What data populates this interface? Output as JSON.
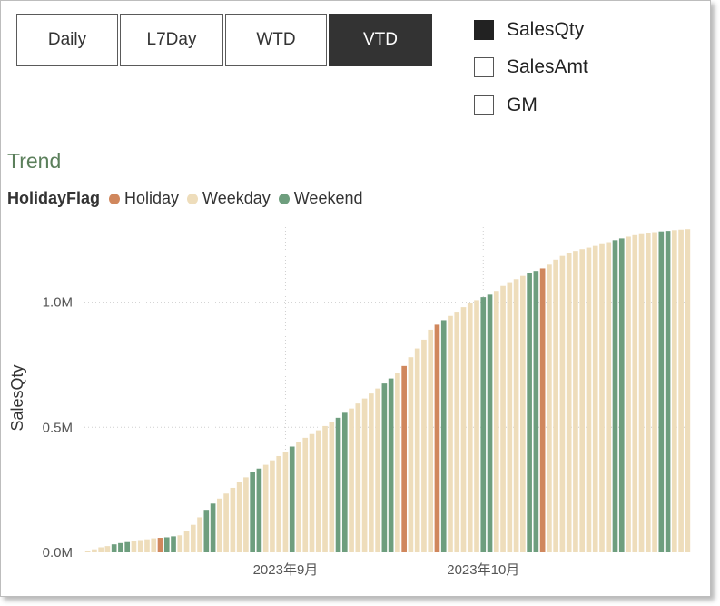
{
  "buttons": [
    {
      "label": "Daily",
      "active": false
    },
    {
      "label": "L7Day",
      "active": false
    },
    {
      "label": "WTD",
      "active": false
    },
    {
      "label": "VTD",
      "active": true
    }
  ],
  "measures": [
    {
      "label": "SalesQty",
      "checked": true
    },
    {
      "label": "SalesAmt",
      "checked": false
    },
    {
      "label": "GM",
      "checked": false
    }
  ],
  "visual_title": "Trend",
  "legend": {
    "title": "HolidayFlag",
    "items": [
      {
        "label": "Holiday",
        "color": "#D0875D"
      },
      {
        "label": "Weekday",
        "color": "#EEDDBB"
      },
      {
        "label": "Weekend",
        "color": "#6E9E7E"
      }
    ]
  },
  "colors": {
    "Holiday": "#D0875D",
    "Weekday": "#EEDDBB",
    "Weekend": "#6E9E7E"
  },
  "chart_data": {
    "type": "bar",
    "ylabel": "SalesQty",
    "xlabel": "",
    "ylim": [
      0,
      1300000
    ],
    "yticks": [
      {
        "value": 0,
        "label": "0.0M"
      },
      {
        "value": 500000,
        "label": "0.5M"
      },
      {
        "value": 1000000,
        "label": "1.0M"
      }
    ],
    "xticks": [
      {
        "index": 31,
        "label": "2023年9月"
      },
      {
        "index": 61,
        "label": "2023年10月"
      }
    ],
    "grid": "dotted",
    "categories_start": "2023-08-01",
    "categories_end": "2023-10-31",
    "flags": [
      "Weekday",
      "Weekday",
      "Weekday",
      "Weekday",
      "Weekend",
      "Weekend",
      "Weekend",
      "Weekday",
      "Weekday",
      "Weekday",
      "Weekday",
      "Holiday",
      "Weekend",
      "Weekend",
      "Weekday",
      "Weekday",
      "Weekday",
      "Weekday",
      "Weekend",
      "Weekend",
      "Weekday",
      "Weekday",
      "Weekday",
      "Weekday",
      "Weekday",
      "Weekend",
      "Weekend",
      "Weekday",
      "Weekday",
      "Weekday",
      "Weekday",
      "Weekend",
      "Weekday",
      "Weekday",
      "Weekday",
      "Weekday",
      "Weekday",
      "Weekday",
      "Weekend",
      "Weekend",
      "Weekday",
      "Weekday",
      "Weekday",
      "Weekday",
      "Weekday",
      "Weekend",
      "Weekend",
      "Weekday",
      "Holiday",
      "Weekday",
      "Weekday",
      "Weekday",
      "Weekday",
      "Holiday",
      "Weekend",
      "Weekday",
      "Weekday",
      "Weekday",
      "Weekday",
      "Weekday",
      "Weekend",
      "Weekend",
      "Weekday",
      "Weekday",
      "Weekday",
      "Weekday",
      "Weekday",
      "Weekend",
      "Weekend",
      "Holiday",
      "Weekday",
      "Weekday",
      "Weekday",
      "Weekday",
      "Weekday",
      "Weekday",
      "Weekday",
      "Weekday",
      "Weekday",
      "Weekday",
      "Weekend",
      "Weekend",
      "Weekday",
      "Weekday",
      "Weekday",
      "Weekday",
      "Weekday",
      "Weekend",
      "Weekend",
      "Weekday",
      "Weekday",
      "Weekday"
    ],
    "values": [
      5000,
      12000,
      20000,
      25000,
      32000,
      37000,
      41000,
      45000,
      49000,
      52000,
      56000,
      58000,
      60000,
      64000,
      68000,
      85000,
      110000,
      140000,
      170000,
      195000,
      215000,
      235000,
      258000,
      280000,
      300000,
      320000,
      335000,
      350000,
      368000,
      385000,
      403000,
      423000,
      440000,
      458000,
      473000,
      488000,
      505000,
      520000,
      538000,
      558000,
      575000,
      595000,
      615000,
      635000,
      655000,
      675000,
      695000,
      718000,
      745000,
      780000,
      815000,
      850000,
      890000,
      910000,
      928000,
      945000,
      962000,
      980000,
      995000,
      1008000,
      1020000,
      1030000,
      1045000,
      1065000,
      1080000,
      1092000,
      1105000,
      1115000,
      1125000,
      1135000,
      1150000,
      1170000,
      1185000,
      1195000,
      1205000,
      1212000,
      1218000,
      1225000,
      1232000,
      1240000,
      1248000,
      1255000,
      1262000,
      1268000,
      1272000,
      1276000,
      1280000,
      1283000,
      1285000,
      1288000,
      1290000,
      1292000
    ]
  }
}
